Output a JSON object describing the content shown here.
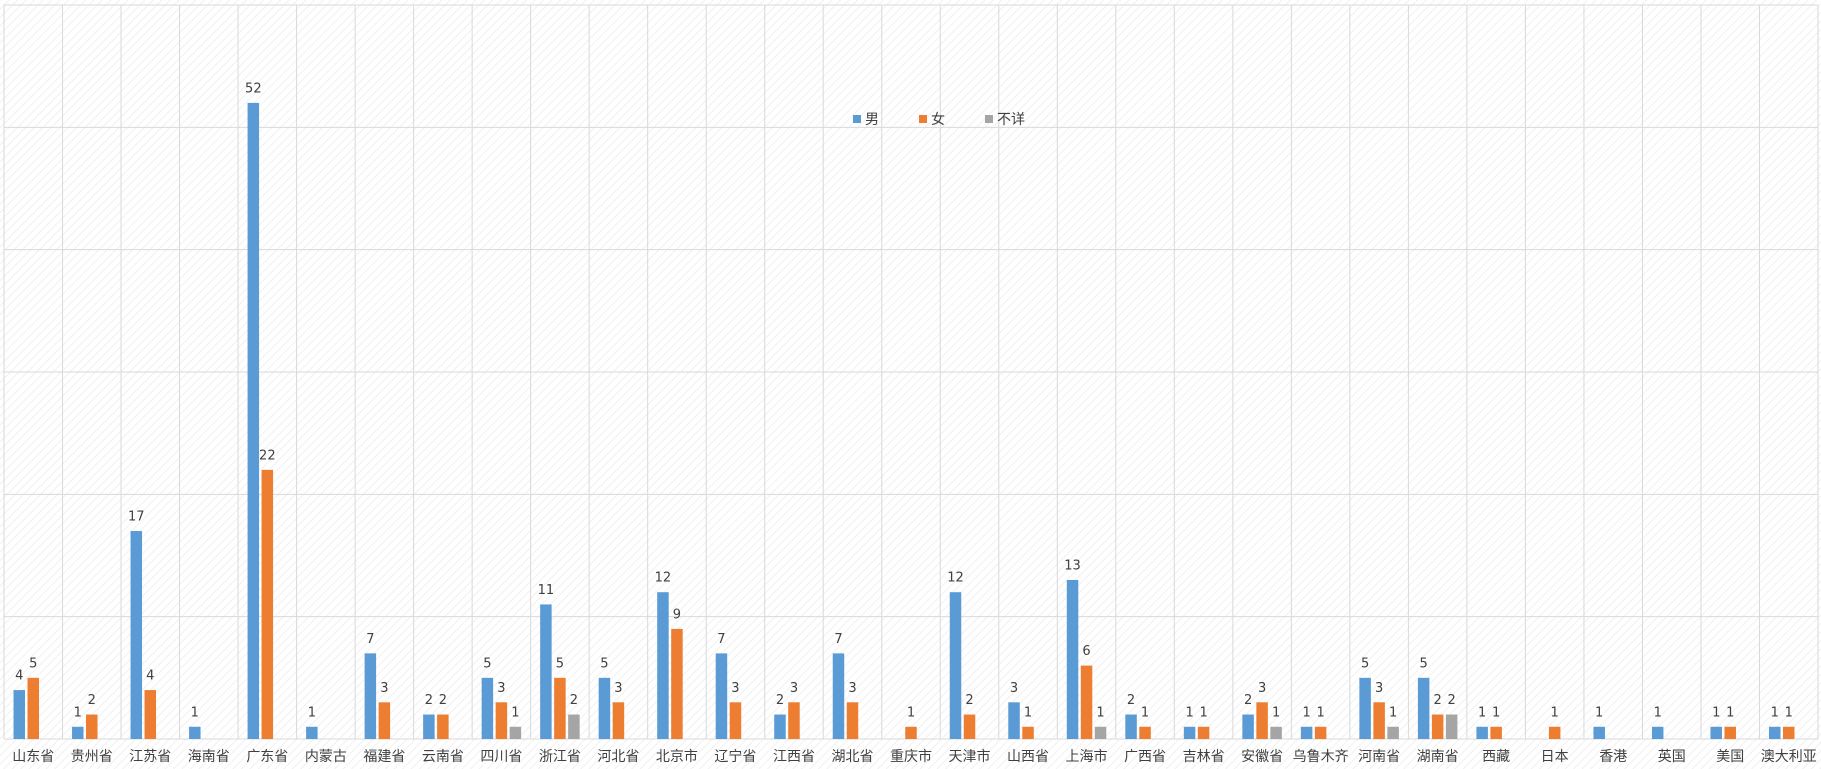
{
  "chart_data": {
    "type": "bar",
    "categories": [
      "山东省",
      "贵州省",
      "江苏省",
      "海南省",
      "广东省",
      "内蒙古",
      "福建省",
      "云南省",
      "四川省",
      "浙江省",
      "河北省",
      "北京市",
      "辽宁省",
      "江西省",
      "湖北省",
      "重庆市",
      "天津市",
      "山西省",
      "上海市",
      "广西省",
      "吉林省",
      "安徽省",
      "乌鲁木齐",
      "河南省",
      "湖南省",
      "西藏",
      "日本",
      "香港",
      "英国",
      "美国",
      "澳大利亚"
    ],
    "series": [
      {
        "name": "男",
        "color": "#5b9bd5",
        "values": [
          4,
          1,
          17,
          1,
          52,
          1,
          7,
          2,
          5,
          11,
          5,
          12,
          7,
          2,
          7,
          null,
          12,
          3,
          13,
          2,
          1,
          2,
          1,
          5,
          5,
          1,
          null,
          1,
          1,
          1,
          1
        ]
      },
      {
        "name": "女",
        "color": "#ed7d31",
        "values": [
          5,
          2,
          4,
          null,
          22,
          null,
          3,
          2,
          3,
          5,
          3,
          9,
          3,
          3,
          3,
          1,
          2,
          1,
          6,
          1,
          1,
          3,
          1,
          3,
          2,
          1,
          1,
          null,
          null,
          1,
          1
        ]
      },
      {
        "name": "不详",
        "color": "#a5a5a5",
        "values": [
          null,
          null,
          null,
          null,
          null,
          null,
          null,
          null,
          1,
          2,
          null,
          null,
          null,
          null,
          null,
          null,
          null,
          null,
          1,
          null,
          null,
          1,
          null,
          1,
          2,
          null,
          null,
          null,
          null,
          null,
          null
        ]
      }
    ],
    "ylim": [
      0,
      60
    ],
    "yticks": [
      0,
      10,
      20,
      30,
      40,
      50,
      60
    ],
    "grid": true
  }
}
